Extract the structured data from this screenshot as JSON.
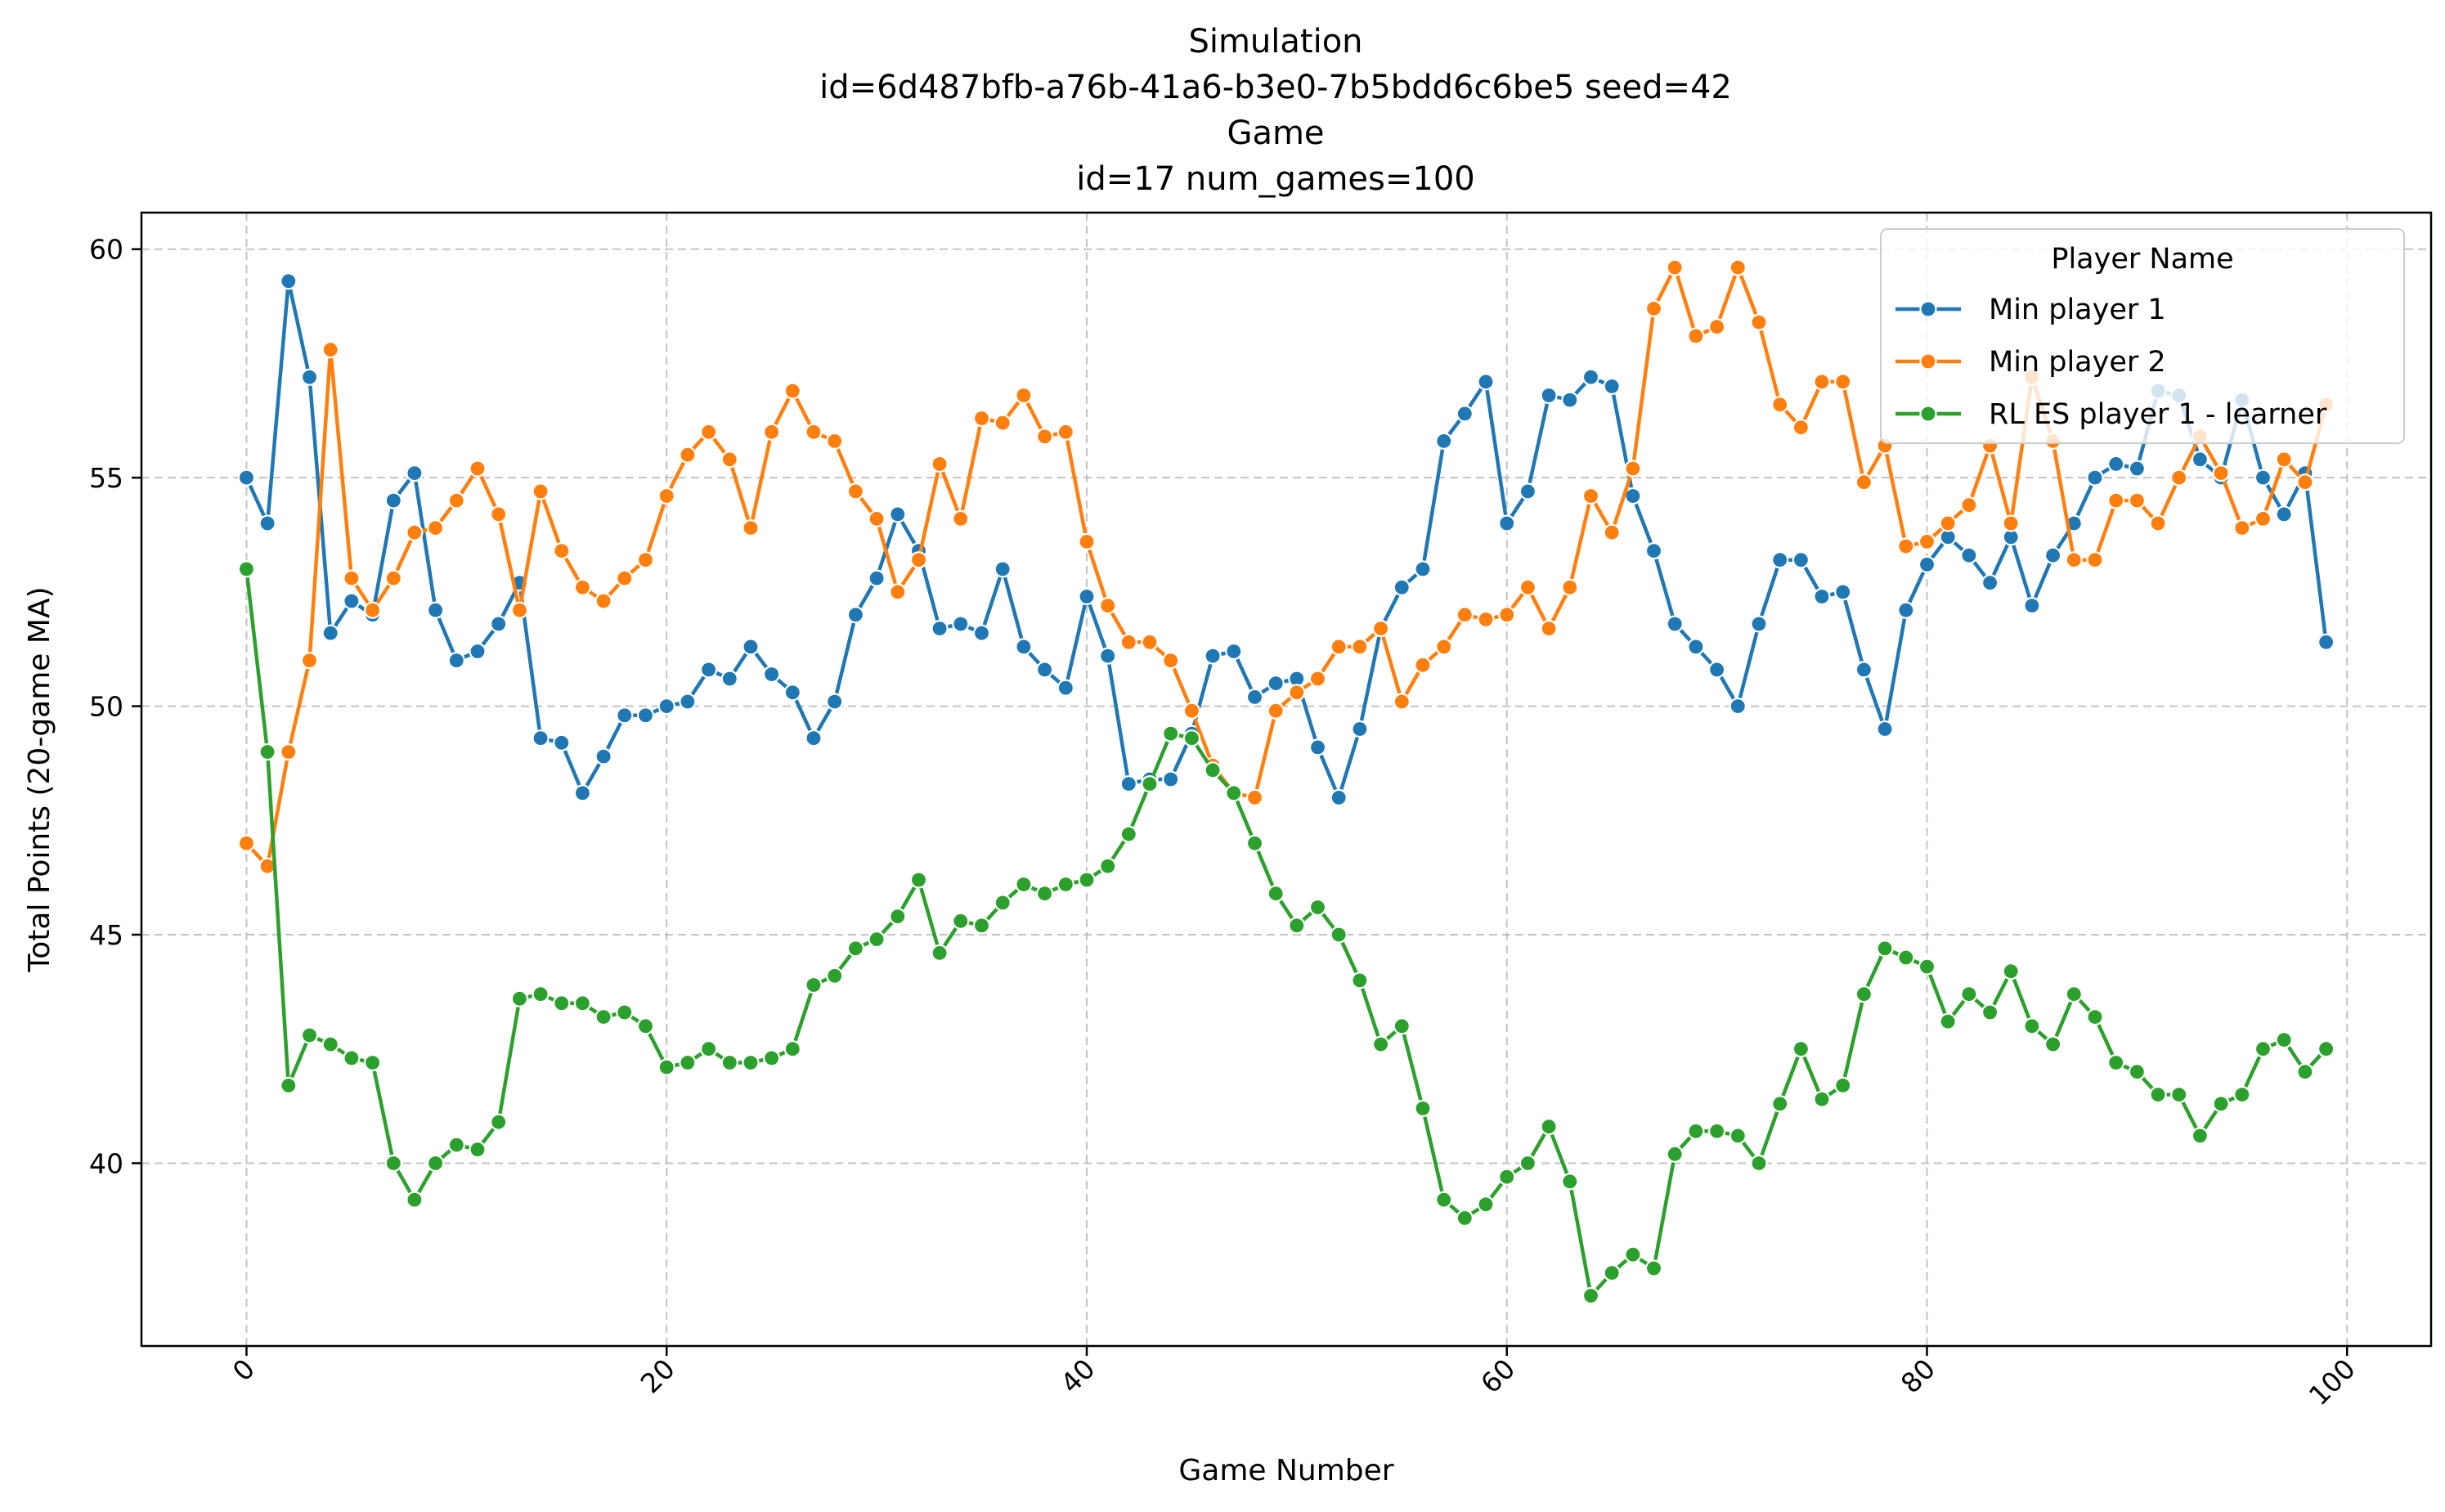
{
  "chart_data": {
    "type": "line",
    "title_lines": [
      "Simulation",
      "id=6d487bfb-a76b-41a6-b3e0-7b5bdd6c6be5 seed=42",
      "Game",
      "id=17 num_games=100"
    ],
    "xlabel": "Game Number",
    "ylabel": "Total Points (20-game MA)",
    "xlim": [
      -5,
      104
    ],
    "ylim": [
      36.0,
      60.8
    ],
    "xticks": [
      0,
      20,
      40,
      60,
      80,
      100
    ],
    "yticks": [
      40,
      45,
      50,
      55,
      60
    ],
    "grid": true,
    "legend": {
      "title": "Player Name",
      "position": "top-right"
    },
    "series": [
      {
        "name": "Min player 1",
        "color": "#1f77b4",
        "values": [
          55.0,
          54.0,
          59.3,
          57.2,
          51.6,
          52.3,
          52.0,
          54.5,
          55.1,
          52.1,
          51.0,
          51.2,
          51.8,
          52.7,
          49.3,
          49.2,
          48.1,
          48.9,
          49.8,
          49.8,
          50.0,
          50.1,
          50.8,
          50.6,
          51.3,
          50.7,
          50.3,
          49.3,
          50.1,
          52.0,
          52.8,
          54.2,
          53.4,
          51.7,
          51.8,
          51.6,
          53.0,
          51.3,
          50.8,
          50.4,
          52.4,
          51.1,
          48.3,
          48.4,
          48.4,
          49.4,
          51.1,
          51.2,
          50.2,
          50.5,
          50.6,
          49.1,
          48.0,
          49.5,
          51.7,
          52.6,
          53.0,
          55.8,
          56.4,
          57.1,
          54.0,
          54.7,
          56.8,
          56.7,
          57.2,
          57.0,
          54.6,
          53.4,
          51.8,
          51.3,
          50.8,
          50.0,
          51.8,
          53.2,
          53.2,
          52.4,
          52.5,
          50.8,
          49.5,
          52.1,
          53.1,
          53.7,
          53.3,
          52.7,
          53.7,
          52.2,
          53.3,
          54.0,
          55.0,
          55.3,
          55.2,
          56.9,
          56.8,
          55.4,
          55.0,
          56.7,
          55.0,
          54.2,
          55.1,
          51.4
        ]
      },
      {
        "name": "Min player 2",
        "color": "#ff7f0e",
        "values": [
          47.0,
          46.5,
          49.0,
          51.0,
          57.8,
          52.8,
          52.1,
          52.8,
          53.8,
          53.9,
          54.5,
          55.2,
          54.2,
          52.1,
          54.7,
          53.4,
          52.6,
          52.3,
          52.8,
          53.2,
          54.6,
          55.5,
          56.0,
          55.4,
          53.9,
          56.0,
          56.9,
          56.0,
          55.8,
          54.7,
          54.1,
          52.5,
          53.2,
          55.3,
          54.1,
          56.3,
          56.2,
          56.8,
          55.9,
          56.0,
          53.6,
          52.2,
          51.4,
          51.4,
          51.0,
          49.9,
          48.7,
          48.1,
          48.0,
          49.9,
          50.3,
          50.6,
          51.3,
          51.3,
          51.7,
          50.1,
          50.9,
          51.3,
          52.0,
          51.9,
          52.0,
          52.6,
          51.7,
          52.6,
          54.6,
          53.8,
          55.2,
          58.7,
          59.6,
          58.1,
          58.3,
          59.6,
          58.4,
          56.6,
          56.1,
          57.1,
          57.1,
          54.9,
          55.7,
          53.5,
          53.6,
          54.0,
          54.4,
          55.7,
          54.0,
          57.2,
          55.8,
          53.2,
          53.2,
          54.5,
          54.5,
          54.0,
          55.0,
          55.9,
          55.1,
          53.9,
          54.1,
          55.4,
          54.9,
          56.6
        ]
      },
      {
        "name": "RL ES player 1 - learner",
        "color": "#2ca02c",
        "values": [
          53.0,
          49.0,
          41.7,
          42.8,
          42.6,
          42.3,
          42.2,
          40.0,
          39.2,
          40.0,
          40.4,
          40.3,
          40.9,
          43.6,
          43.7,
          43.5,
          43.5,
          43.2,
          43.3,
          43.0,
          42.1,
          42.2,
          42.5,
          42.2,
          42.2,
          42.3,
          42.5,
          43.9,
          44.1,
          44.7,
          44.9,
          45.4,
          46.2,
          44.6,
          45.3,
          45.2,
          45.7,
          46.1,
          45.9,
          46.1,
          46.2,
          46.5,
          47.2,
          48.3,
          49.4,
          49.3,
          48.6,
          48.1,
          47.0,
          45.9,
          45.2,
          45.6,
          45.0,
          44.0,
          42.6,
          43.0,
          41.2,
          39.2,
          38.8,
          39.1,
          39.7,
          40.0,
          40.8,
          39.6,
          37.1,
          37.6,
          38.0,
          37.7,
          40.2,
          40.7,
          40.7,
          40.6,
          40.0,
          41.3,
          42.5,
          41.4,
          41.7,
          43.7,
          44.7,
          44.5,
          44.3,
          43.1,
          43.7,
          43.3,
          44.2,
          43.0,
          42.6,
          43.7,
          43.2,
          42.2,
          42.0,
          41.5,
          41.5,
          40.6,
          41.3,
          41.5,
          42.5,
          42.7,
          42.0,
          42.5
        ]
      }
    ]
  }
}
